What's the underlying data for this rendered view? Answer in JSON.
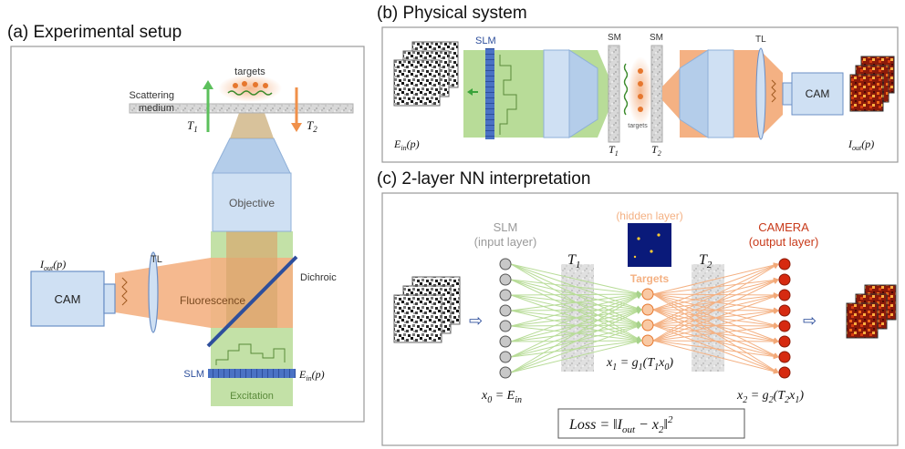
{
  "panels": {
    "a": {
      "title": "(a) Experimental setup",
      "labels": {
        "targets": "targets",
        "scattering_1": "Scattering",
        "scattering_2": "medium",
        "T1": "T",
        "T1_sub": "1",
        "T2": "T",
        "T2_sub": "2",
        "objective": "Objective",
        "dichroic": "Dichroic",
        "cam": "CAM",
        "tl": "TL",
        "fluorescence": "Fluorescence",
        "iout": "I",
        "iout_sub": "out",
        "iout_arg": "(p)",
        "slm": "SLM",
        "ein": "E",
        "ein_sub": "in",
        "ein_arg": "(p)",
        "excitation": "Excitation"
      }
    },
    "b": {
      "title": "(b) Physical system",
      "labels": {
        "slm": "SLM",
        "sm1": "SM",
        "sm2": "SM",
        "tl": "TL",
        "cam": "CAM",
        "targets": "targets",
        "T1": "T",
        "T1_sub": "1",
        "T2": "T",
        "T2_sub": "2",
        "ein": "E",
        "ein_sub": "in",
        "ein_arg": "(p)",
        "iout": "I",
        "iout_sub": "out",
        "iout_arg": "(p)"
      }
    },
    "c": {
      "title": "(c) 2-layer NN interpretation",
      "labels": {
        "slm_1": "SLM",
        "slm_2": "(input layer)",
        "hidden": "(hidden layer)",
        "camera_1": "CAMERA",
        "camera_2": "(output layer)",
        "targets": "Targets",
        "T1": "T",
        "T1_sub": "1",
        "T2": "T",
        "T2_sub": "2",
        "x0_eq": "x",
        "x0_sub": "0",
        "x0_rhs": " = E",
        "x0_rhs_sub": "in",
        "x1_eq": "x",
        "x1_sub": "1",
        "x1_rhs": " = g",
        "x1_g_sub": "1",
        "x1_arg": "(T",
        "x1_arg_sub": "1",
        "x1_arg2": "x",
        "x1_arg2_sub": "0",
        "x1_close": ")",
        "x2_eq": "x",
        "x2_sub": "2",
        "x2_rhs": " = g",
        "x2_g_sub": "2",
        "x2_arg": "(T",
        "x2_arg_sub": "2",
        "x2_arg2": "x",
        "x2_arg2_sub": "1",
        "x2_close": ")",
        "loss": "Loss = ",
        "loss_norm": "‖I",
        "loss_norm_sub": "out",
        "loss_minus": " − x",
        "loss_x_sub": "2",
        "loss_close": "‖",
        "loss_sq": "2"
      }
    }
  },
  "colors": {
    "green": "#b8dc98",
    "green_dark": "#3aa33a",
    "orange": "#f4b183",
    "orange_dark": "#e6772e",
    "blue_light": "#cfe0f3",
    "blue_mid": "#9dbde4",
    "blue_dark": "#2e4f9c",
    "border": "#9a9a9a"
  }
}
